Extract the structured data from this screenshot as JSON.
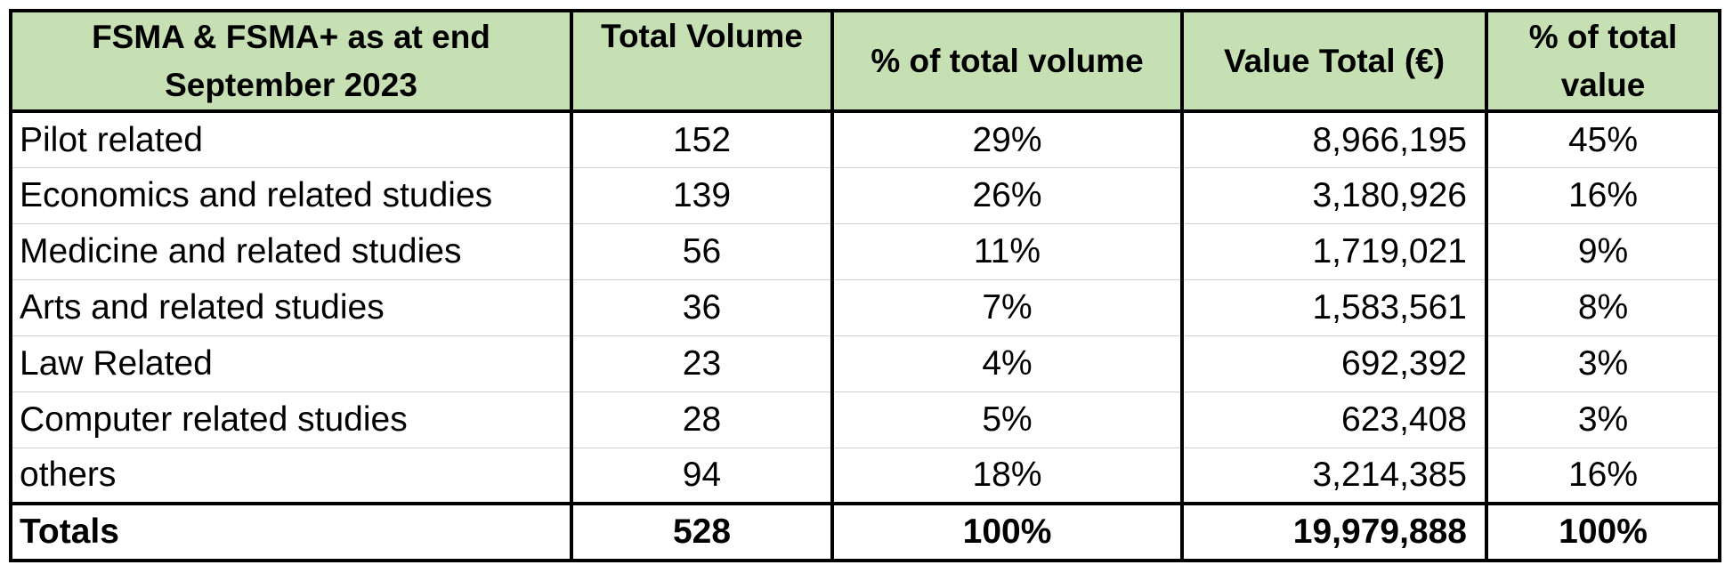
{
  "table": {
    "headers": [
      "FSMA & FSMA+ as at end September 2023",
      "Total Volume",
      "% of total volume",
      "Value Total (€)",
      "% of total value"
    ],
    "rows": [
      [
        "Pilot related",
        "152",
        "29%",
        "8,966,195",
        "45%"
      ],
      [
        "Economics and related studies",
        "139",
        "26%",
        "3,180,926",
        "16%"
      ],
      [
        "Medicine and related studies",
        "56",
        "11%",
        "1,719,021",
        "9%"
      ],
      [
        "Arts and related studies",
        "36",
        "7%",
        "1,583,561",
        "8%"
      ],
      [
        "Law Related",
        "23",
        "4%",
        "692,392",
        "3%"
      ],
      [
        "Computer related studies",
        "28",
        "5%",
        "623,408",
        "3%"
      ],
      [
        "others",
        "94",
        "18%",
        "3,214,385",
        "16%"
      ]
    ],
    "totals": [
      "Totals",
      "528",
      "100%",
      "19,979,888",
      "100%"
    ]
  },
  "colors": {
    "header_background": "#c6e0b4",
    "border": "#000000",
    "inner_row_line": "#d0d0d0"
  }
}
